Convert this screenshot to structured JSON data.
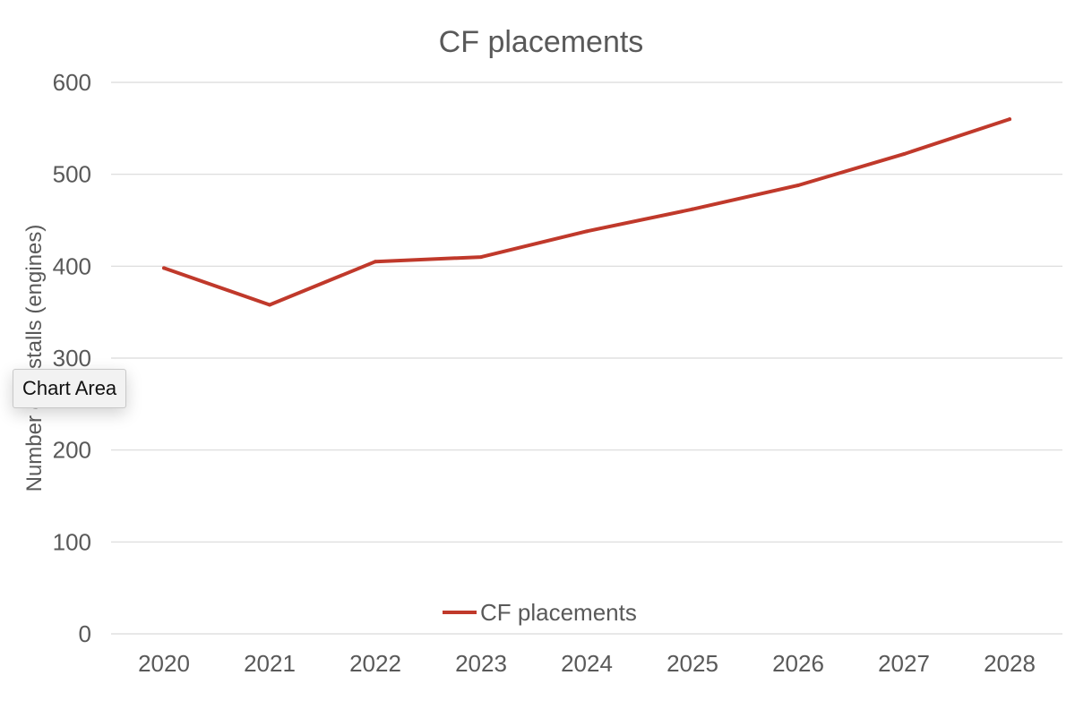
{
  "chart_data": {
    "type": "line",
    "title": "CF placements",
    "xlabel": "",
    "ylabel": "Number of installs (engines)",
    "ylim": [
      0,
      600
    ],
    "yticks": [
      0,
      100,
      200,
      300,
      400,
      500,
      600
    ],
    "categories": [
      "2020",
      "2021",
      "2022",
      "2023",
      "2024",
      "2025",
      "2026",
      "2027",
      "2028"
    ],
    "series": [
      {
        "name": "CF placements",
        "color": "#c0392b",
        "values": [
          398,
          358,
          405,
          410,
          438,
          462,
          488,
          522,
          560
        ]
      }
    ],
    "grid": true,
    "legend": "bottom"
  },
  "tooltip": {
    "text": "Chart Area"
  }
}
